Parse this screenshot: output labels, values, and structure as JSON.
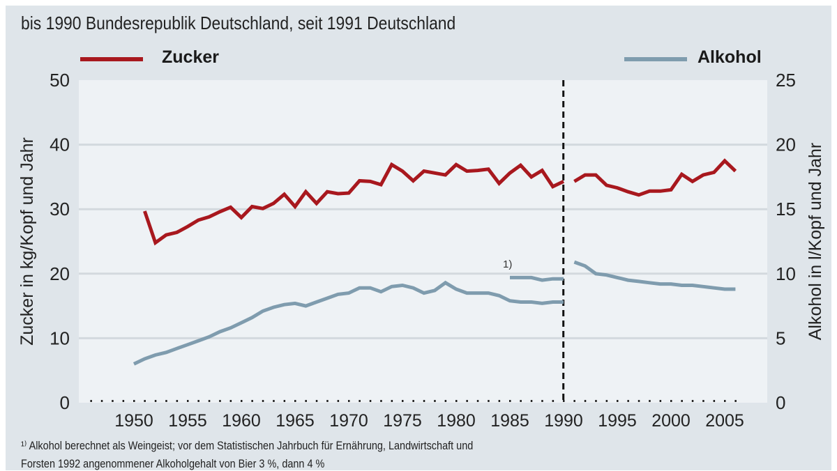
{
  "subtitle": "bis 1990 Bundesrepublik Deutschland, seit 1991 Deutschland",
  "footnote": {
    "line1": "¹⁾ Alkohol berechnet als Weingeist; vor dem Statistischen Jahrbuch für Ernährung, Landwirtschaft und",
    "line2": "Forsten 1992 angenommener Alkoholgehalt von Bier 3 %, dann 4 %"
  },
  "colors": {
    "zucker": "#a8181e",
    "alkohol": "#7f9cae",
    "background": "#dfe5ea",
    "plot": "#eef2f5"
  },
  "chart_data": {
    "type": "line",
    "ylabel": "Zucker in kg/Kopf und Jahr",
    "ylabel_right": "Alkohol in l/Kopf und Jahr",
    "ylim": [
      0,
      50
    ],
    "ylim_right": [
      0,
      25
    ],
    "yticks": [
      "0",
      "10",
      "20",
      "30",
      "40",
      "50"
    ],
    "yticks_right": [
      "0",
      "5",
      "10",
      "15",
      "20",
      "25"
    ],
    "xticks": [
      "1950",
      "1955",
      "1960",
      "1965",
      "1970",
      "1975",
      "1980",
      "1985",
      "1990",
      "1995",
      "2000",
      "2005"
    ],
    "xlim": [
      1949,
      2007
    ],
    "divider_year": 1990.5,
    "annotation": "1)",
    "grid": "horizontal",
    "legend": [
      {
        "name": "Zucker",
        "placement": "top-left"
      },
      {
        "name": "Alkohol",
        "placement": "top-right"
      }
    ],
    "series": [
      {
        "name": "Zucker",
        "axis": "left",
        "segments": [
          {
            "x": [
              1951,
              1952,
              1953,
              1954,
              1955,
              1956,
              1957,
              1958,
              1959,
              1960,
              1961,
              1962,
              1963,
              1964,
              1965,
              1966,
              1967,
              1968,
              1969,
              1970,
              1971,
              1972,
              1973,
              1974,
              1975,
              1976,
              1977,
              1978,
              1979,
              1980,
              1981,
              1982,
              1983,
              1984,
              1985,
              1986,
              1987,
              1988,
              1989,
              1990
            ],
            "y": [
              29.7,
              24.8,
              26.0,
              26.4,
              27.3,
              28.3,
              28.8,
              29.6,
              30.3,
              28.7,
              30.4,
              30.1,
              30.9,
              32.3,
              30.4,
              32.7,
              30.9,
              32.7,
              32.4,
              32.5,
              34.4,
              34.3,
              33.8,
              36.9,
              35.9,
              34.4,
              35.9,
              35.6,
              35.3,
              36.9,
              35.9,
              36.0,
              36.2,
              34.0,
              35.6,
              36.8,
              35.0,
              36.0,
              33.5,
              34.3
            ]
          },
          {
            "x": [
              1991,
              1992,
              1993,
              1994,
              1995,
              1996,
              1997,
              1998,
              1999,
              2000,
              2001,
              2002,
              2003,
              2004,
              2005,
              2006
            ],
            "y": [
              34.3,
              35.3,
              35.3,
              33.7,
              33.3,
              32.7,
              32.2,
              32.8,
              32.8,
              33.0,
              35.4,
              34.3,
              35.3,
              35.7,
              37.5,
              35.9
            ]
          }
        ]
      },
      {
        "name": "Alkohol",
        "axis": "right",
        "segments": [
          {
            "x": [
              1950,
              1951,
              1952,
              1953,
              1954,
              1955,
              1956,
              1957,
              1958,
              1959,
              1960,
              1961,
              1962,
              1963,
              1964,
              1965,
              1966,
              1967,
              1968,
              1969,
              1970,
              1971,
              1972,
              1973,
              1974,
              1975,
              1976,
              1977,
              1978,
              1979,
              1980,
              1981,
              1982,
              1983,
              1984,
              1985,
              1986,
              1987,
              1988,
              1989,
              1990
            ],
            "y": [
              3.0,
              3.4,
              3.7,
              3.9,
              4.2,
              4.5,
              4.8,
              5.1,
              5.5,
              5.8,
              6.2,
              6.6,
              7.1,
              7.4,
              7.6,
              7.7,
              7.5,
              7.8,
              8.1,
              8.4,
              8.5,
              8.9,
              8.9,
              8.6,
              9.0,
              9.1,
              8.9,
              8.5,
              8.7,
              9.3,
              8.8,
              8.5,
              8.5,
              8.5,
              8.3,
              7.9,
              7.8,
              7.8,
              7.7,
              7.8,
              7.8
            ]
          },
          {
            "x": [
              1985,
              1986,
              1987,
              1988,
              1989,
              1990
            ],
            "y": [
              9.7,
              9.7,
              9.7,
              9.5,
              9.6,
              9.6
            ]
          },
          {
            "x": [
              1991,
              1992,
              1993,
              1994,
              1995,
              1996,
              1997,
              1998,
              1999,
              2000,
              2001,
              2002,
              2003,
              2004,
              2005,
              2006
            ],
            "y": [
              10.9,
              10.6,
              10.0,
              9.9,
              9.7,
              9.5,
              9.4,
              9.3,
              9.2,
              9.2,
              9.1,
              9.1,
              9.0,
              8.9,
              8.8,
              8.8
            ]
          }
        ]
      }
    ]
  }
}
